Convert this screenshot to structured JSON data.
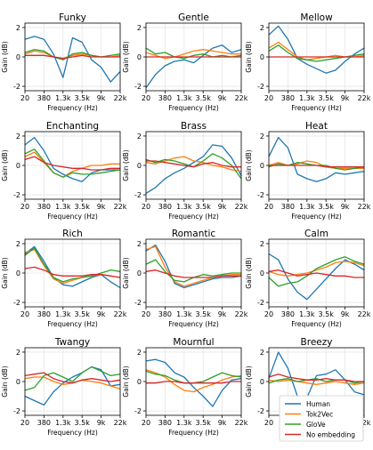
{
  "chart_data": {
    "type": "line",
    "layout": "grid 4x3 of small-multiple panels",
    "shared_axes": {
      "xlabel": "Frequency (Hz)",
      "ylabel": "Gain (dB)",
      "xticks": [
        "20",
        "380",
        "1.3k",
        "3.5k",
        "9k",
        "22k"
      ],
      "yticks": [
        -2,
        0,
        2
      ],
      "ylim": [
        -2.3,
        2.3
      ],
      "grid": true,
      "x_scale": "ordinal positions of printed ticks (0..5)"
    },
    "legend": {
      "placement": "bottom-right",
      "entries": [
        "Human",
        "Tok2Vec",
        "GloVe",
        "No embedding"
      ]
    },
    "series_colors": {
      "Human": "#1f77b4",
      "Tok2Vec": "#ff7f0e",
      "GloVe": "#2ca02c",
      "No embedding": "#d62728"
    },
    "x": [
      0,
      0.5,
      1,
      1.5,
      2,
      2.5,
      3,
      3.5,
      4,
      4.5,
      5
    ],
    "panels": [
      {
        "title": "Funky",
        "series": [
          {
            "name": "Human",
            "values": [
              1.2,
              1.4,
              1.2,
              0.2,
              -1.4,
              1.3,
              1.0,
              -0.2,
              -0.7,
              -1.7,
              -1.0
            ]
          },
          {
            "name": "Tok2Vec",
            "values": [
              0.2,
              0.4,
              0.3,
              0.0,
              -0.1,
              0.1,
              0.2,
              0.1,
              0.0,
              0.0,
              0.1
            ]
          },
          {
            "name": "GloVe",
            "values": [
              0.3,
              0.5,
              0.4,
              0.0,
              -0.2,
              0.2,
              0.3,
              0.1,
              0.0,
              0.1,
              0.2
            ]
          },
          {
            "name": "No embedding",
            "values": [
              0.1,
              0.1,
              0.1,
              0.0,
              -0.1,
              0.0,
              0.1,
              0.0,
              0.0,
              0.0,
              0.0
            ]
          }
        ]
      },
      {
        "title": "Gentle",
        "series": [
          {
            "name": "Human",
            "values": [
              -2.1,
              -1.2,
              -0.6,
              -0.3,
              -0.2,
              -0.4,
              0.1,
              0.6,
              0.8,
              0.3,
              0.5
            ]
          },
          {
            "name": "Tok2Vec",
            "values": [
              0.3,
              0.1,
              -0.1,
              0.0,
              0.2,
              0.4,
              0.5,
              0.4,
              0.3,
              0.2,
              0.2
            ]
          },
          {
            "name": "GloVe",
            "values": [
              0.6,
              0.2,
              0.3,
              0.0,
              -0.1,
              0.1,
              0.2,
              0.0,
              0.1,
              0.0,
              0.1
            ]
          },
          {
            "name": "No embedding",
            "values": [
              0.0,
              0.0,
              0.0,
              0.0,
              0.0,
              0.0,
              0.0,
              0.0,
              0.0,
              0.0,
              0.0
            ]
          }
        ]
      },
      {
        "title": "Mellow",
        "series": [
          {
            "name": "Human",
            "values": [
              1.5,
              2.1,
              1.2,
              -0.1,
              -0.5,
              -0.8,
              -1.1,
              -0.9,
              -0.3,
              0.2,
              0.6
            ]
          },
          {
            "name": "Tok2Vec",
            "values": [
              0.6,
              1.0,
              0.5,
              0.0,
              -0.2,
              -0.1,
              0.0,
              0.1,
              0.0,
              0.0,
              0.1
            ]
          },
          {
            "name": "GloVe",
            "values": [
              0.4,
              0.8,
              0.3,
              -0.1,
              -0.2,
              -0.3,
              -0.2,
              -0.1,
              0.0,
              0.1,
              0.2
            ]
          },
          {
            "name": "No embedding",
            "values": [
              0.0,
              0.0,
              0.0,
              0.0,
              0.0,
              0.0,
              0.0,
              0.0,
              0.0,
              0.0,
              0.0
            ]
          }
        ]
      },
      {
        "title": "Enchanting",
        "series": [
          {
            "name": "Human",
            "values": [
              1.4,
              1.9,
              1.0,
              -0.2,
              -0.6,
              -0.9,
              -1.1,
              -0.5,
              -0.3,
              -0.3,
              -0.3
            ]
          },
          {
            "name": "Tok2Vec",
            "values": [
              0.6,
              0.9,
              0.2,
              -0.5,
              -0.8,
              -0.4,
              -0.2,
              0.0,
              0.0,
              0.1,
              0.1
            ]
          },
          {
            "name": "GloVe",
            "values": [
              0.8,
              1.1,
              0.3,
              -0.5,
              -0.8,
              -0.5,
              -0.6,
              -0.6,
              -0.5,
              -0.4,
              -0.3
            ]
          },
          {
            "name": "No embedding",
            "values": [
              0.4,
              0.6,
              0.2,
              0.0,
              -0.1,
              -0.2,
              -0.2,
              -0.3,
              -0.3,
              -0.2,
              -0.2
            ]
          }
        ]
      },
      {
        "title": "Brass",
        "series": [
          {
            "name": "Human",
            "values": [
              -1.9,
              -1.5,
              -0.9,
              -0.5,
              -0.2,
              0.2,
              0.6,
              1.4,
              1.3,
              0.5,
              -0.7
            ]
          },
          {
            "name": "Tok2Vec",
            "values": [
              0.2,
              0.1,
              0.3,
              0.5,
              0.6,
              0.3,
              0.2,
              0.0,
              -0.1,
              -0.3,
              -0.4
            ]
          },
          {
            "name": "GloVe",
            "values": [
              0.4,
              0.2,
              0.4,
              0.3,
              0.1,
              -0.1,
              0.3,
              0.8,
              0.5,
              0.0,
              -0.9
            ]
          },
          {
            "name": "No embedding",
            "values": [
              0.3,
              0.3,
              0.2,
              0.1,
              0.0,
              -0.1,
              0.1,
              0.2,
              0.0,
              -0.1,
              -0.1
            ]
          }
        ]
      },
      {
        "title": "Heat",
        "series": [
          {
            "name": "Human",
            "values": [
              0.6,
              1.9,
              1.2,
              -0.6,
              -0.9,
              -1.1,
              -0.9,
              -0.5,
              -0.6,
              -0.5,
              -0.4
            ]
          },
          {
            "name": "Tok2Vec",
            "values": [
              0.0,
              0.2,
              0.0,
              0.1,
              0.3,
              0.2,
              -0.1,
              -0.2,
              -0.2,
              -0.2,
              -0.2
            ]
          },
          {
            "name": "GloVe",
            "values": [
              -0.1,
              0.1,
              0.0,
              0.2,
              0.1,
              0.0,
              0.0,
              -0.2,
              -0.3,
              -0.2,
              -0.1
            ]
          },
          {
            "name": "No embedding",
            "values": [
              0.0,
              0.0,
              0.0,
              0.0,
              0.0,
              0.0,
              -0.1,
              -0.1,
              -0.1,
              -0.1,
              -0.1
            ]
          }
        ]
      },
      {
        "title": "Rich",
        "series": [
          {
            "name": "Human",
            "values": [
              1.3,
              1.8,
              0.8,
              -0.3,
              -0.8,
              -0.9,
              -0.6,
              -0.3,
              -0.1,
              -0.6,
              -1.0
            ]
          },
          {
            "name": "Tok2Vec",
            "values": [
              1.4,
              1.6,
              0.5,
              -0.4,
              -0.7,
              -0.5,
              -0.3,
              -0.2,
              -0.1,
              -0.2,
              -0.3
            ]
          },
          {
            "name": "GloVe",
            "values": [
              1.2,
              1.7,
              0.6,
              -0.3,
              -0.6,
              -0.4,
              -0.3,
              -0.2,
              0.0,
              0.2,
              0.1
            ]
          },
          {
            "name": "No embedding",
            "values": [
              0.3,
              0.4,
              0.2,
              -0.1,
              -0.2,
              -0.2,
              -0.2,
              -0.1,
              -0.1,
              -0.2,
              -0.3
            ]
          }
        ]
      },
      {
        "title": "Romantic",
        "series": [
          {
            "name": "Human",
            "values": [
              1.5,
              1.9,
              0.8,
              -0.7,
              -1.0,
              -0.8,
              -0.6,
              -0.4,
              -0.3,
              -0.3,
              -0.2
            ]
          },
          {
            "name": "Tok2Vec",
            "values": [
              1.6,
              1.8,
              0.4,
              -0.6,
              -0.9,
              -0.7,
              -0.5,
              -0.3,
              -0.2,
              -0.1,
              -0.1
            ]
          },
          {
            "name": "GloVe",
            "values": [
              0.6,
              0.9,
              0.1,
              -0.5,
              -0.6,
              -0.3,
              -0.1,
              -0.2,
              -0.1,
              0.0,
              0.0
            ]
          },
          {
            "name": "No embedding",
            "values": [
              0.1,
              0.2,
              0.0,
              -0.2,
              -0.3,
              -0.3,
              -0.3,
              -0.3,
              -0.2,
              -0.2,
              -0.2
            ]
          }
        ]
      },
      {
        "title": "Calm",
        "series": [
          {
            "name": "Human",
            "values": [
              1.3,
              0.9,
              -0.4,
              -1.3,
              -1.8,
              -1.1,
              -0.4,
              0.3,
              0.9,
              0.6,
              0.2
            ]
          },
          {
            "name": "Tok2Vec",
            "values": [
              0.1,
              -0.1,
              -0.2,
              -0.1,
              0.0,
              0.2,
              0.4,
              0.7,
              0.8,
              0.7,
              0.5
            ]
          },
          {
            "name": "GloVe",
            "values": [
              -0.3,
              -0.9,
              -0.7,
              -0.6,
              -0.2,
              0.3,
              0.6,
              0.9,
              1.1,
              0.8,
              0.6
            ]
          },
          {
            "name": "No embedding",
            "values": [
              0.1,
              0.2,
              0.0,
              -0.2,
              -0.1,
              0.0,
              -0.1,
              -0.2,
              -0.2,
              -0.3,
              -0.3
            ]
          }
        ]
      },
      {
        "title": "Twangy",
        "series": [
          {
            "name": "Human",
            "values": [
              -1.0,
              -1.3,
              -1.6,
              -0.7,
              -0.1,
              0.3,
              0.6,
              1.0,
              0.8,
              -0.3,
              -0.2
            ]
          },
          {
            "name": "Tok2Vec",
            "values": [
              0.2,
              0.3,
              0.3,
              0.0,
              -0.2,
              -0.1,
              0.1,
              0.0,
              -0.1,
              -0.3,
              -0.5
            ]
          },
          {
            "name": "GloVe",
            "values": [
              -0.6,
              -0.4,
              0.4,
              0.6,
              0.3,
              0.0,
              0.6,
              1.0,
              0.7,
              0.4,
              0.5
            ]
          },
          {
            "name": "No embedding",
            "values": [
              0.4,
              0.5,
              0.6,
              0.2,
              0.0,
              -0.1,
              0.1,
              0.2,
              0.1,
              0.0,
              0.1
            ]
          }
        ]
      },
      {
        "title": "Mournful",
        "series": [
          {
            "name": "Human",
            "values": [
              1.4,
              1.5,
              1.3,
              0.6,
              0.3,
              -0.4,
              -1.0,
              -1.7,
              -0.6,
              0.1,
              0.2
            ]
          },
          {
            "name": "Tok2Vec",
            "values": [
              0.8,
              0.6,
              0.3,
              -0.2,
              -0.6,
              -0.7,
              -0.4,
              -0.2,
              0.1,
              0.3,
              0.4
            ]
          },
          {
            "name": "GloVe",
            "values": [
              0.7,
              0.5,
              0.4,
              0.1,
              -0.1,
              -0.1,
              0.0,
              0.3,
              0.6,
              0.4,
              0.3
            ]
          },
          {
            "name": "No embedding",
            "values": [
              -0.1,
              -0.1,
              0.0,
              0.0,
              -0.1,
              -0.1,
              -0.1,
              -0.1,
              -0.1,
              0.0,
              0.0
            ]
          }
        ]
      },
      {
        "title": "Breezy",
        "series": [
          {
            "name": "Human",
            "values": [
              0.2,
              2.0,
              0.9,
              -1.0,
              -1.1,
              0.4,
              0.5,
              0.8,
              0.1,
              -0.7,
              -0.9
            ]
          },
          {
            "name": "Tok2Vec",
            "values": [
              0.1,
              0.0,
              0.1,
              0.0,
              -0.1,
              -0.2,
              -0.1,
              0.0,
              -0.1,
              -0.2,
              -0.1
            ]
          },
          {
            "name": "GloVe",
            "values": [
              -0.1,
              0.1,
              0.2,
              0.0,
              0.1,
              0.2,
              0.0,
              0.1,
              0.1,
              -0.1,
              0.0
            ]
          },
          {
            "name": "No embedding",
            "values": [
              0.3,
              0.5,
              0.3,
              0.2,
              0.1,
              0.1,
              0.2,
              0.1,
              0.1,
              0.0,
              0.0
            ]
          }
        ]
      }
    ]
  }
}
